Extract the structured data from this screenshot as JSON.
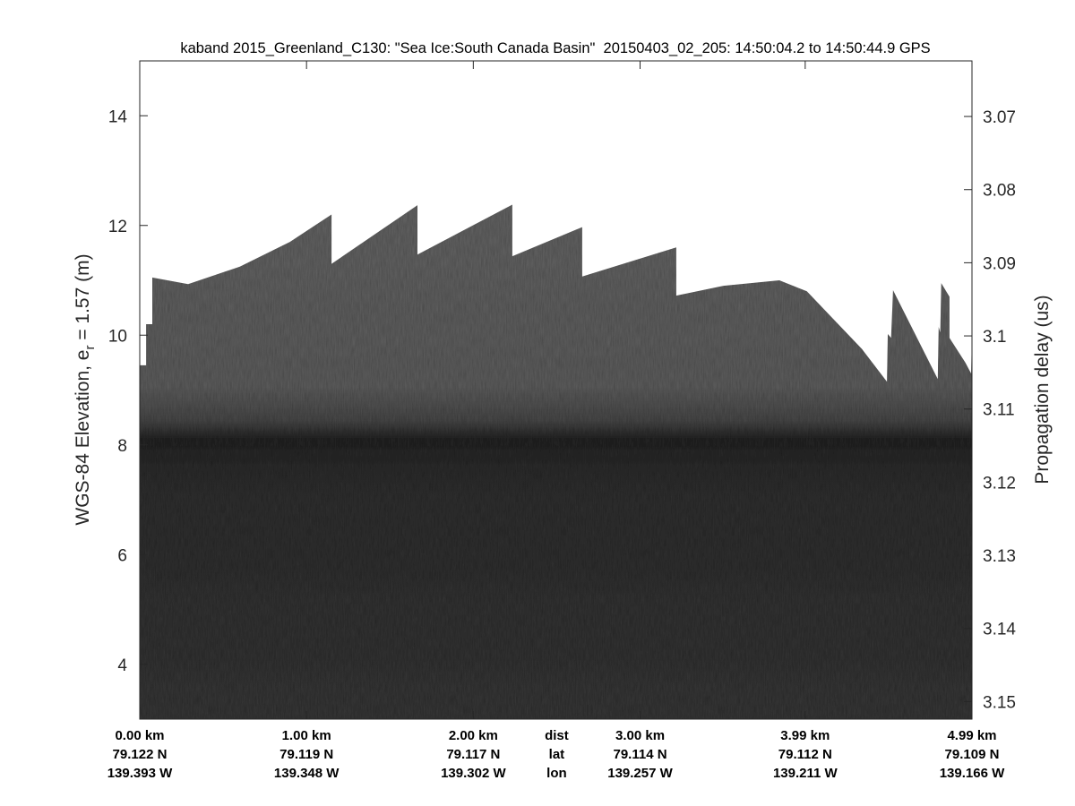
{
  "chart_data": {
    "type": "heatmap",
    "title": "kaband 2015_Greenland_C130: \"Sea Ice:South Canada Basin\"  20150403_02_205: 14:50:04.2 to 14:50:44.9 GPS",
    "ylabel_left": {
      "main": "WGS-84 Elevation, e",
      "sub": "r",
      "tail": " = 1.57 (m)"
    },
    "ylabel_right": "Propagation delay (us)",
    "ylim_left": [
      3,
      15
    ],
    "yticks_left": [
      4,
      6,
      8,
      10,
      12,
      14
    ],
    "yticks_right": [
      "3.07",
      "3.08",
      "3.09",
      "3.1",
      "3.11",
      "3.12",
      "3.13",
      "3.14",
      "3.15"
    ],
    "yticks_right_values": [
      3.07,
      3.08,
      3.09,
      3.1,
      3.11,
      3.12,
      3.13,
      3.14,
      3.15
    ],
    "ylim_right_top": 3.0624,
    "ylim_right_per_meter": 0.0075,
    "xlim_km": [
      0,
      4.99
    ],
    "x_rows": {
      "dist_label": "dist",
      "lat_label": "lat",
      "lon_label": "lon",
      "km": [
        0.0,
        1.0,
        2.0,
        3.0,
        3.99,
        4.99
      ],
      "dist": [
        "0.00 km",
        "1.00 km",
        "2.00 km",
        "3.00 km",
        "3.99 km",
        "4.99 km"
      ],
      "lat": [
        "79.122 N",
        "79.119 N",
        "79.117 N",
        "79.114 N",
        "79.112 N",
        "79.109 N"
      ],
      "lon": [
        "139.393 W",
        "139.348 W",
        "139.302 W",
        "139.257 W",
        "139.211 W",
        "139.166 W"
      ]
    },
    "surface_top_profile": {
      "distance_km": [
        0,
        0.038,
        0.038,
        0.075,
        0.075,
        0.29,
        0.6,
        0.9,
        1.15,
        1.15,
        1.665,
        1.665,
        2.234,
        2.234,
        2.653,
        2.653,
        3.217,
        3.217,
        3.5,
        3.835,
        4.0,
        4.157,
        4.33,
        4.48,
        4.485,
        4.505,
        4.517,
        4.785,
        4.79,
        4.8,
        4.806,
        4.855,
        4.855,
        4.95,
        4.985,
        4.99
      ],
      "elevation_m": [
        9.45,
        9.45,
        10.2,
        10.2,
        11.05,
        10.93,
        11.25,
        11.7,
        12.2,
        11.3,
        12.37,
        11.47,
        12.38,
        11.44,
        11.97,
        11.07,
        11.6,
        10.72,
        10.9,
        11.0,
        10.8,
        10.3,
        9.75,
        9.15,
        10.02,
        9.95,
        10.82,
        9.2,
        10.15,
        10.05,
        10.95,
        10.7,
        9.95,
        9.5,
        9.3,
        10.1
      ]
    },
    "layers": {
      "upper_tone": "#6b6b6b",
      "interface_elevation_m": 8.1,
      "interface_tone": "#262626",
      "lower_tone": "#383838"
    }
  }
}
